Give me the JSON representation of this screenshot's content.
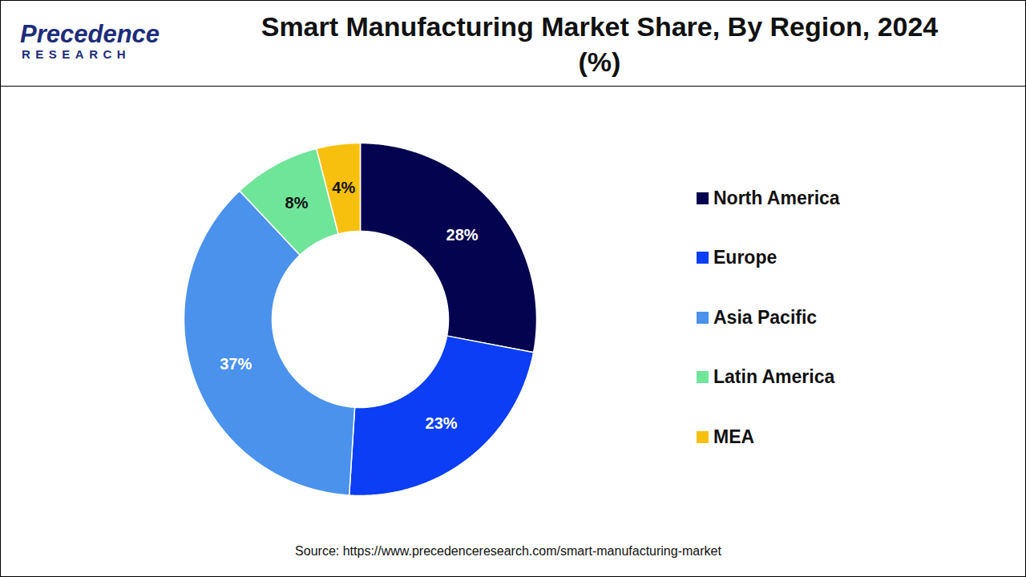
{
  "chart_data": {
    "type": "donut",
    "title": "Smart Manufacturing Market Share, By Region, 2024 (%)",
    "logo": "Precedence",
    "logo_subtitle": "RESEARCH",
    "categories": [
      "North America",
      "Europe",
      "Asia Pacific",
      "Latin America",
      "MEA"
    ],
    "values": [
      28,
      23,
      37,
      8,
      4
    ],
    "value_labels": [
      "28%",
      "23%",
      "37%",
      "8%",
      "4%"
    ],
    "colors": [
      "#03034f",
      "#0b3ef5",
      "#4a92ec",
      "#6fe59a",
      "#f8c00e"
    ],
    "data_labels": true,
    "legend": "right",
    "source": "Source: https://www.precedenceresearch.com/smart-manufacturing-market"
  }
}
